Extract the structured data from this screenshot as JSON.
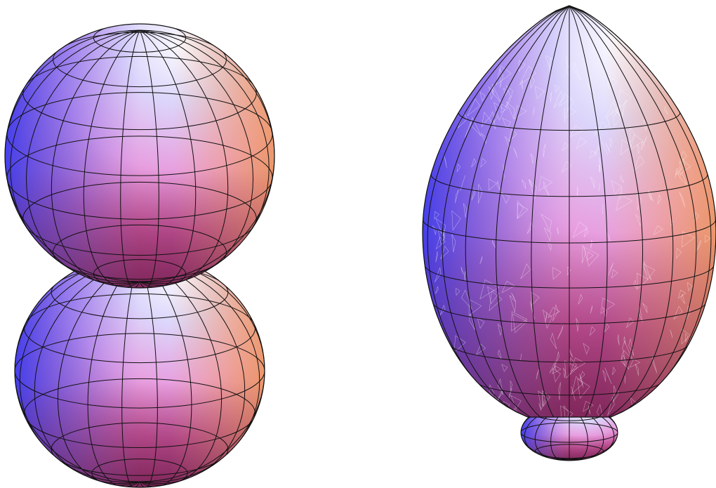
{
  "figure": {
    "panels": [
      {
        "name": "two-lobe-surface",
        "shape": "double-sphere"
      },
      {
        "name": "egg-surface",
        "shape": "egg-with-small-lobe"
      }
    ],
    "colors": {
      "background": "#ffffff",
      "shade_blue": "#5a5cf0",
      "shade_white": "#f4f4ff",
      "shade_pink": "#e88ad8",
      "shade_magenta": "#b03a78",
      "shade_peach": "#f2a070",
      "mesh_line": "#111111",
      "facet_line": "#ffffff"
    }
  }
}
